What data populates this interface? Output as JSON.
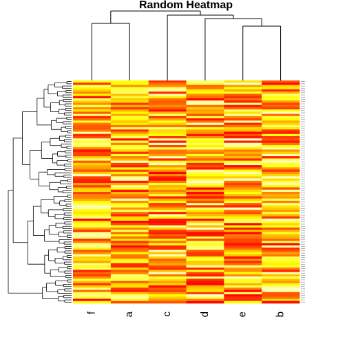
{
  "chart_data": {
    "type": "heatmap",
    "title": "Random Heatmap",
    "columns": [
      "f",
      "a",
      "c",
      "d",
      "e",
      "b"
    ],
    "n_rows": 100,
    "value_range": [
      0,
      1
    ],
    "palette": "heat",
    "row_dendrogram": true,
    "col_dendrogram": true,
    "grid": false,
    "colors": {
      "low": "#ff0000",
      "high": "#ffffcc",
      "line": "#000000"
    }
  }
}
